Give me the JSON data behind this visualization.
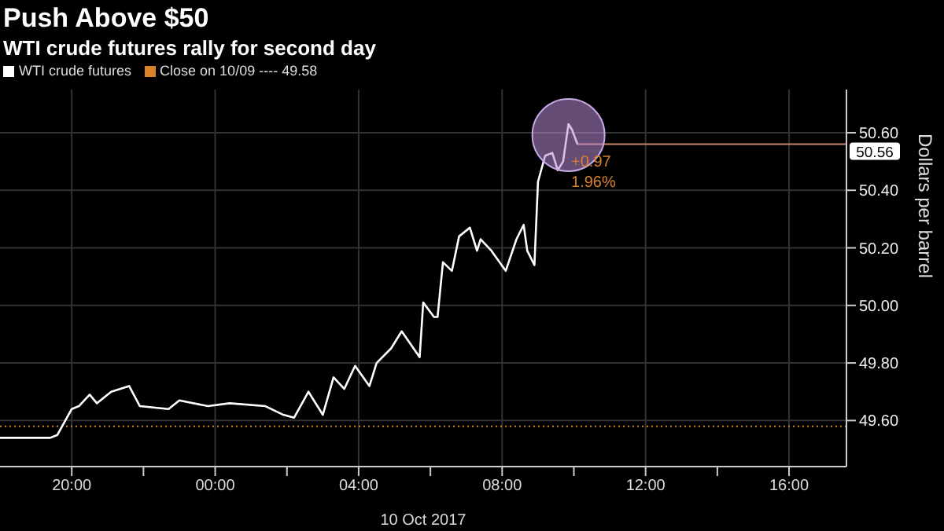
{
  "chart_data": {
    "type": "line",
    "title": "Push Above $50",
    "subtitle": "WTI crude futures rally for second day",
    "xlabel": "10 Oct 2017",
    "ylabel": "Dollars per barrel",
    "x": [
      "2017-10-09T18:00",
      "2017-10-09T19:24",
      "2017-10-09T19:36",
      "2017-10-09T20:00",
      "2017-10-09T20:12",
      "2017-10-09T20:30",
      "2017-10-09T20:42",
      "2017-10-09T21:06",
      "2017-10-09T21:36",
      "2017-10-09T21:54",
      "2017-10-09T22:42",
      "2017-10-09T23:00",
      "2017-10-09T23:48",
      "2017-10-10T00:24",
      "2017-10-10T01:24",
      "2017-10-10T01:54",
      "2017-10-10T02:12",
      "2017-10-10T02:36",
      "2017-10-10T03:00",
      "2017-10-10T03:18",
      "2017-10-10T03:36",
      "2017-10-10T03:54",
      "2017-10-10T04:18",
      "2017-10-10T04:30",
      "2017-10-10T04:54",
      "2017-10-10T05:12",
      "2017-10-10T05:42",
      "2017-10-10T05:48",
      "2017-10-10T06:06",
      "2017-10-10T06:12",
      "2017-10-10T06:21",
      "2017-10-10T06:36",
      "2017-10-10T06:48",
      "2017-10-10T07:06",
      "2017-10-10T07:18",
      "2017-10-10T07:24",
      "2017-10-10T07:42",
      "2017-10-10T08:06",
      "2017-10-10T08:24",
      "2017-10-10T08:36",
      "2017-10-10T08:42",
      "2017-10-10T08:54",
      "2017-10-10T09:00",
      "2017-10-10T09:12",
      "2017-10-10T09:24",
      "2017-10-10T09:33",
      "2017-10-10T09:42",
      "2017-10-10T09:51",
      "2017-10-10T09:57",
      "2017-10-10T10:06"
    ],
    "series": [
      {
        "name": "WTI crude futures",
        "color": "#ffffff",
        "values": [
          49.54,
          49.54,
          49.55,
          49.64,
          49.65,
          49.69,
          49.66,
          49.7,
          49.72,
          49.65,
          49.64,
          49.67,
          49.65,
          49.66,
          49.65,
          49.62,
          49.61,
          49.7,
          49.62,
          49.75,
          49.71,
          49.79,
          49.72,
          49.8,
          49.85,
          49.91,
          49.82,
          50.01,
          49.96,
          49.96,
          50.15,
          50.12,
          50.24,
          50.27,
          50.19,
          50.23,
          50.19,
          50.12,
          50.23,
          50.28,
          50.19,
          50.14,
          50.43,
          50.52,
          50.53,
          50.47,
          50.5,
          50.63,
          50.61,
          50.56
        ]
      }
    ],
    "xlim": [
      "2017-10-09T18:00",
      "2017-10-10T17:36"
    ],
    "xticks": [
      {
        "value": "2017-10-09T20:00",
        "label": "20:00"
      },
      {
        "value": "2017-10-09T22:00",
        "label": null
      },
      {
        "value": "2017-10-10T00:00",
        "label": "00:00"
      },
      {
        "value": "2017-10-10T02:00",
        "label": null
      },
      {
        "value": "2017-10-10T04:00",
        "label": "04:00"
      },
      {
        "value": "2017-10-10T06:00",
        "label": null
      },
      {
        "value": "2017-10-10T08:00",
        "label": "08:00"
      },
      {
        "value": "2017-10-10T10:00",
        "label": null
      },
      {
        "value": "2017-10-10T12:00",
        "label": "12:00"
      },
      {
        "value": "2017-10-10T14:00",
        "label": null
      },
      {
        "value": "2017-10-10T16:00",
        "label": "16:00"
      }
    ],
    "ylim": [
      49.44,
      50.75
    ],
    "yticks": [
      {
        "value": 49.6,
        "label": "49.60"
      },
      {
        "value": 49.8,
        "label": "49.80"
      },
      {
        "value": 50,
        "label": "50.00"
      },
      {
        "value": 50.2,
        "label": "50.20"
      },
      {
        "value": 50.4,
        "label": "50.40"
      },
      {
        "value": 50.6,
        "label": "50.60"
      }
    ],
    "ref_lines": [
      {
        "axis": "y",
        "value": 49.58,
        "label": "Close on 10/09 ---- 49.58",
        "color": "#d9822b",
        "line_style": "dotted"
      },
      {
        "axis": "y",
        "value": 50.56,
        "label": "50.56",
        "color": "#c9856a",
        "line_style": "solid"
      }
    ],
    "annotations": [
      "+0.97",
      "1.96%"
    ],
    "grid": true,
    "legend": "top left",
    "marker": "none",
    "line_style": "solid"
  }
}
